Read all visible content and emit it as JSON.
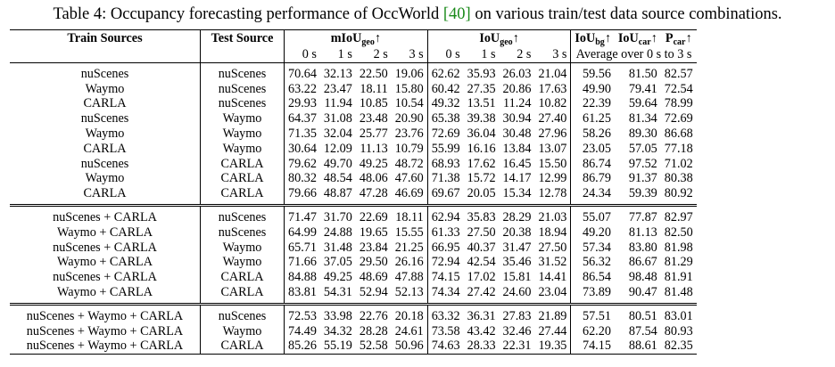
{
  "caption": {
    "prefix": "Table 4: Occupancy forecasting performance of OccWorld ",
    "cite": "[40]",
    "suffix": " on various train/test data source combinations."
  },
  "header": {
    "train": "Train Sources",
    "test": "Test Source",
    "miou_base": "mIoU",
    "miou_sub": "geo",
    "iou_base": "IoU",
    "iou_sub": "geo",
    "bg_base": "IoU",
    "bg_sub": "bg",
    "car_base": "IoU",
    "car_sub": "car",
    "p_base": "P",
    "p_sub": "car",
    "arrow": "↑",
    "times": [
      "0 s",
      "1 s",
      "2 s",
      "3 s"
    ],
    "average": "Average over  0 s to 3 s"
  },
  "groups": [
    [
      {
        "train": "nuScenes",
        "test": "nuScenes",
        "miou": [
          "70.64",
          "32.13",
          "22.50",
          "19.06"
        ],
        "iou": [
          "62.62",
          "35.93",
          "26.03",
          "21.04"
        ],
        "avg": [
          "59.56",
          "81.50",
          "82.57"
        ]
      },
      {
        "train": "Waymo",
        "test": "nuScenes",
        "miou": [
          "63.22",
          "23.47",
          "18.11",
          "15.80"
        ],
        "iou": [
          "60.42",
          "27.35",
          "20.86",
          "17.63"
        ],
        "avg": [
          "49.90",
          "79.41",
          "72.54"
        ]
      },
      {
        "train": "CARLA",
        "test": "nuScenes",
        "miou": [
          "29.93",
          "11.94",
          "10.85",
          "10.54"
        ],
        "iou": [
          "49.32",
          "13.51",
          "11.24",
          "10.82"
        ],
        "avg": [
          "22.39",
          "59.64",
          "78.99"
        ]
      },
      {
        "train": "nuScenes",
        "test": "Waymo",
        "miou": [
          "64.37",
          "31.08",
          "23.48",
          "20.90"
        ],
        "iou": [
          "65.38",
          "39.38",
          "30.94",
          "27.40"
        ],
        "avg": [
          "61.25",
          "81.34",
          "72.69"
        ]
      },
      {
        "train": "Waymo",
        "test": "Waymo",
        "miou": [
          "71.35",
          "32.04",
          "25.77",
          "23.76"
        ],
        "iou": [
          "72.69",
          "36.04",
          "30.48",
          "27.96"
        ],
        "avg": [
          "58.26",
          "89.30",
          "86.68"
        ]
      },
      {
        "train": "CARLA",
        "test": "Waymo",
        "miou": [
          "30.64",
          "12.09",
          "11.13",
          "10.79"
        ],
        "iou": [
          "55.99",
          "16.16",
          "13.84",
          "13.07"
        ],
        "avg": [
          "23.05",
          "57.05",
          "77.18"
        ]
      },
      {
        "train": "nuScenes",
        "test": "CARLA",
        "miou": [
          "79.62",
          "49.70",
          "49.25",
          "48.72"
        ],
        "iou": [
          "68.93",
          "17.62",
          "16.45",
          "15.50"
        ],
        "avg": [
          "86.74",
          "97.52",
          "71.02"
        ]
      },
      {
        "train": "Waymo",
        "test": "CARLA",
        "miou": [
          "80.32",
          "48.54",
          "48.06",
          "47.60"
        ],
        "iou": [
          "71.38",
          "15.72",
          "14.17",
          "12.99"
        ],
        "avg": [
          "86.79",
          "91.37",
          "80.38"
        ]
      },
      {
        "train": "CARLA",
        "test": "CARLA",
        "miou": [
          "79.66",
          "48.87",
          "47.28",
          "46.69"
        ],
        "iou": [
          "69.67",
          "20.05",
          "15.34",
          "12.78"
        ],
        "avg": [
          "24.34",
          "59.39",
          "80.92"
        ]
      }
    ],
    [
      {
        "train": "nuScenes + CARLA",
        "test": "nuScenes",
        "miou": [
          "71.47",
          "31.70",
          "22.69",
          "18.11"
        ],
        "iou": [
          "62.94",
          "35.83",
          "28.29",
          "21.03"
        ],
        "avg": [
          "55.07",
          "77.87",
          "82.97"
        ]
      },
      {
        "train": "Waymo + CARLA",
        "test": "nuScenes",
        "miou": [
          "64.99",
          "24.88",
          "19.65",
          "15.55"
        ],
        "iou": [
          "61.33",
          "27.50",
          "20.38",
          "18.94"
        ],
        "avg": [
          "49.20",
          "81.13",
          "82.50"
        ]
      },
      {
        "train": "nuScenes + CARLA",
        "test": "Waymo",
        "miou": [
          "65.71",
          "31.48",
          "23.84",
          "21.25"
        ],
        "iou": [
          "66.95",
          "40.37",
          "31.47",
          "27.50"
        ],
        "avg": [
          "57.34",
          "83.80",
          "81.98"
        ]
      },
      {
        "train": "Waymo + CARLA",
        "test": "Waymo",
        "miou": [
          "71.66",
          "37.05",
          "29.50",
          "26.16"
        ],
        "iou": [
          "72.94",
          "42.54",
          "35.46",
          "31.52"
        ],
        "avg": [
          "56.32",
          "86.67",
          "81.29"
        ]
      },
      {
        "train": "nuScenes + CARLA",
        "test": "CARLA",
        "miou": [
          "84.88",
          "49.25",
          "48.69",
          "47.88"
        ],
        "iou": [
          "74.15",
          "17.02",
          "15.81",
          "14.41"
        ],
        "avg": [
          "86.54",
          "98.48",
          "81.91"
        ]
      },
      {
        "train": "Waymo + CARLA",
        "test": "CARLA",
        "miou": [
          "83.81",
          "54.31",
          "52.94",
          "52.13"
        ],
        "iou": [
          "74.34",
          "27.42",
          "24.60",
          "23.04"
        ],
        "avg": [
          "73.89",
          "90.47",
          "81.48"
        ]
      }
    ],
    [
      {
        "train": "nuScenes + Waymo + CARLA",
        "test": "nuScenes",
        "miou": [
          "72.53",
          "33.98",
          "22.76",
          "20.18"
        ],
        "iou": [
          "63.32",
          "36.31",
          "27.83",
          "21.89"
        ],
        "avg": [
          "57.51",
          "80.51",
          "83.01"
        ]
      },
      {
        "train": "nuScenes + Waymo + CARLA",
        "test": "Waymo",
        "miou": [
          "74.49",
          "34.32",
          "28.28",
          "24.61"
        ],
        "iou": [
          "73.58",
          "43.42",
          "32.46",
          "27.44"
        ],
        "avg": [
          "62.20",
          "87.54",
          "80.93"
        ]
      },
      {
        "train": "nuScenes + Waymo + CARLA",
        "test": "CARLA",
        "miou": [
          "85.26",
          "55.19",
          "52.58",
          "50.96"
        ],
        "iou": [
          "74.63",
          "28.33",
          "22.31",
          "19.35"
        ],
        "avg": [
          "74.15",
          "88.61",
          "82.35"
        ]
      }
    ]
  ]
}
